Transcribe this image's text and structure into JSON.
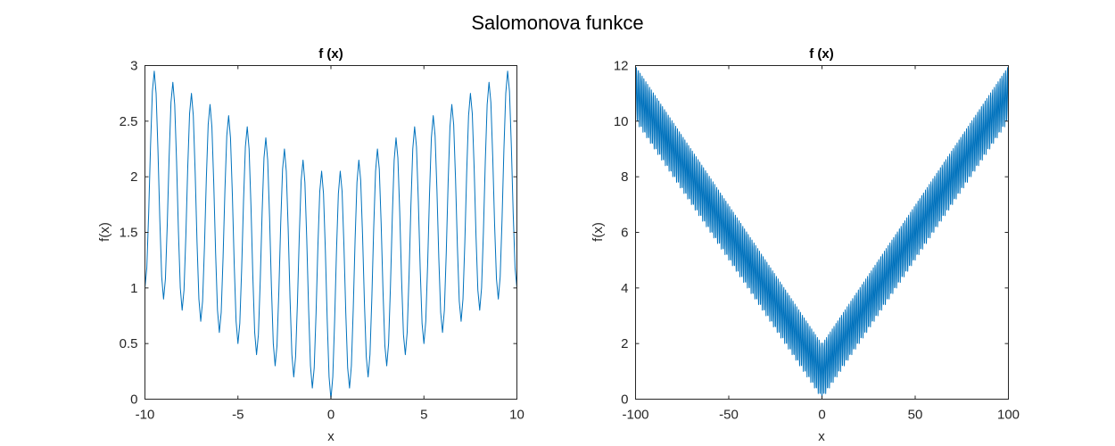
{
  "figure": {
    "title": "Salomonova funkce"
  },
  "chart_data": [
    {
      "type": "line",
      "title": "f (x)",
      "xlabel": "x",
      "ylabel": "f(x)",
      "xlim": [
        -10,
        10
      ],
      "ylim": [
        0,
        3
      ],
      "xticks": [
        -10,
        -5,
        0,
        5,
        10
      ],
      "xtick_labels": [
        "-10",
        "-5",
        "0",
        "5",
        "10"
      ],
      "yticks": [
        0,
        0.5,
        1,
        1.5,
        2,
        2.5,
        3
      ],
      "ytick_labels": [
        "0",
        "0.5",
        "1",
        "1.5",
        "2",
        "2.5",
        "3"
      ],
      "grid": false,
      "line_color": "#0072BD",
      "series": [
        {
          "function": "1 - cos(2*pi*|x|) + 0.1*|x|",
          "x_range": [
            -10,
            10
          ],
          "samples": 200
        }
      ]
    },
    {
      "type": "line",
      "title": "f (x)",
      "xlabel": "x",
      "ylabel": "f(x)",
      "xlim": [
        -100,
        100
      ],
      "ylim": [
        0,
        12
      ],
      "xticks": [
        -100,
        -50,
        0,
        50,
        100
      ],
      "xtick_labels": [
        "-100",
        "-50",
        "0",
        "50",
        "100"
      ],
      "yticks": [
        0,
        2,
        4,
        6,
        8,
        10,
        12
      ],
      "ytick_labels": [
        "0",
        "2",
        "4",
        "6",
        "8",
        "10",
        "12"
      ],
      "grid": false,
      "line_color": "#0072BD",
      "series": [
        {
          "function": "1 - cos(2*pi*|x|) + 0.1*|x|",
          "x_range": [
            -100,
            100
          ],
          "samples": 1300
        }
      ]
    }
  ]
}
